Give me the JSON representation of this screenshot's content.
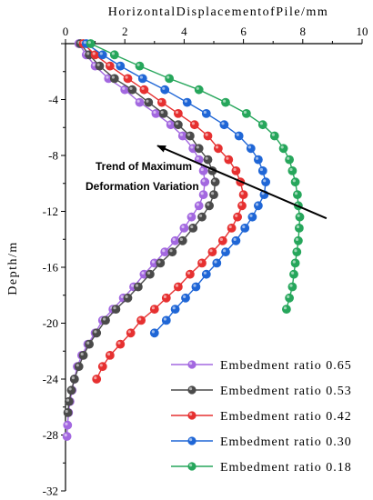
{
  "chart_data": {
    "type": "line",
    "xlabel": "HorizontalDisplacementofPile/mm",
    "ylabel": "Depth/m",
    "xlim": [
      0,
      10
    ],
    "ylim": [
      -32,
      0
    ],
    "x_ticks": [
      "0",
      "2",
      "4",
      "6",
      "8",
      "10"
    ],
    "y_ticks": [
      "-4",
      "-8",
      "-12",
      "-16",
      "-20",
      "-24",
      "-28",
      "-32"
    ],
    "x_axis_position": "top",
    "grid": false,
    "legend_position": "bottom-right",
    "annotation": {
      "lines": [
        "Trend of Maximum",
        "Deformation Variation"
      ],
      "arrow_from": [
        8.8,
        -12.5
      ],
      "arrow_to": [
        3.1,
        -7.3
      ]
    },
    "series": [
      {
        "name": "Embedment ratio 0.65",
        "color": "#a368e0",
        "points": [
          [
            0.45,
            0
          ],
          [
            0.7,
            -0.8
          ],
          [
            1.0,
            -1.6
          ],
          [
            1.45,
            -2.5
          ],
          [
            2.0,
            -3.3
          ],
          [
            2.5,
            -4.2
          ],
          [
            3.05,
            -5.0
          ],
          [
            3.55,
            -5.8
          ],
          [
            3.95,
            -6.6
          ],
          [
            4.3,
            -7.5
          ],
          [
            4.5,
            -8.3
          ],
          [
            4.65,
            -9.1
          ],
          [
            4.7,
            -9.9
          ],
          [
            4.65,
            -10.8
          ],
          [
            4.5,
            -11.6
          ],
          [
            4.25,
            -12.4
          ],
          [
            4.0,
            -13.2
          ],
          [
            3.7,
            -14.1
          ],
          [
            3.35,
            -14.9
          ],
          [
            3.0,
            -15.7
          ],
          [
            2.65,
            -16.5
          ],
          [
            2.3,
            -17.4
          ],
          [
            1.95,
            -18.2
          ],
          [
            1.6,
            -19.0
          ],
          [
            1.25,
            -19.8
          ],
          [
            1.0,
            -20.7
          ],
          [
            0.75,
            -21.5
          ],
          [
            0.55,
            -22.3
          ],
          [
            0.4,
            -23.1
          ],
          [
            0.3,
            -24.0
          ],
          [
            0.22,
            -24.8
          ],
          [
            0.15,
            -25.6
          ],
          [
            0.1,
            -26.4
          ],
          [
            0.07,
            -27.3
          ],
          [
            0.05,
            -28.1
          ]
        ]
      },
      {
        "name": "Embedment ratio 0.53",
        "color": "#4a4a4a",
        "points": [
          [
            0.5,
            0
          ],
          [
            0.8,
            -0.8
          ],
          [
            1.15,
            -1.6
          ],
          [
            1.65,
            -2.5
          ],
          [
            2.25,
            -3.3
          ],
          [
            2.8,
            -4.2
          ],
          [
            3.3,
            -5.0
          ],
          [
            3.8,
            -5.8
          ],
          [
            4.2,
            -6.6
          ],
          [
            4.5,
            -7.5
          ],
          [
            4.8,
            -8.3
          ],
          [
            4.95,
            -9.1
          ],
          [
            5.05,
            -9.9
          ],
          [
            5.0,
            -10.8
          ],
          [
            4.85,
            -11.6
          ],
          [
            4.6,
            -12.4
          ],
          [
            4.3,
            -13.2
          ],
          [
            3.95,
            -14.1
          ],
          [
            3.6,
            -14.9
          ],
          [
            3.2,
            -15.7
          ],
          [
            2.85,
            -16.5
          ],
          [
            2.45,
            -17.4
          ],
          [
            2.1,
            -18.2
          ],
          [
            1.7,
            -19.0
          ],
          [
            1.35,
            -19.8
          ],
          [
            1.05,
            -20.7
          ],
          [
            0.8,
            -21.5
          ],
          [
            0.6,
            -22.3
          ],
          [
            0.45,
            -23.1
          ],
          [
            0.3,
            -24.0
          ],
          [
            0.2,
            -24.8
          ],
          [
            0.12,
            -25.6
          ],
          [
            0.08,
            -26.4
          ]
        ]
      },
      {
        "name": "Embedment ratio 0.42",
        "color": "#e63030",
        "points": [
          [
            0.6,
            0
          ],
          [
            1.0,
            -0.8
          ],
          [
            1.5,
            -1.6
          ],
          [
            2.1,
            -2.5
          ],
          [
            2.65,
            -3.3
          ],
          [
            3.25,
            -4.2
          ],
          [
            3.8,
            -5.0
          ],
          [
            4.35,
            -5.8
          ],
          [
            4.8,
            -6.6
          ],
          [
            5.15,
            -7.5
          ],
          [
            5.5,
            -8.3
          ],
          [
            5.75,
            -9.1
          ],
          [
            5.9,
            -9.9
          ],
          [
            6.0,
            -10.8
          ],
          [
            5.95,
            -11.6
          ],
          [
            5.8,
            -12.4
          ],
          [
            5.6,
            -13.2
          ],
          [
            5.3,
            -14.1
          ],
          [
            4.95,
            -14.9
          ],
          [
            4.6,
            -15.7
          ],
          [
            4.2,
            -16.5
          ],
          [
            3.8,
            -17.4
          ],
          [
            3.4,
            -18.2
          ],
          [
            3.0,
            -19.0
          ],
          [
            2.55,
            -19.8
          ],
          [
            2.2,
            -20.7
          ],
          [
            1.85,
            -21.5
          ],
          [
            1.5,
            -22.3
          ],
          [
            1.25,
            -23.1
          ],
          [
            1.05,
            -24.0
          ]
        ]
      },
      {
        "name": "Embedment ratio 0.30",
        "color": "#1f66d6",
        "points": [
          [
            0.7,
            0
          ],
          [
            1.25,
            -0.8
          ],
          [
            1.85,
            -1.6
          ],
          [
            2.6,
            -2.5
          ],
          [
            3.35,
            -3.3
          ],
          [
            4.1,
            -4.2
          ],
          [
            4.75,
            -5.0
          ],
          [
            5.35,
            -5.8
          ],
          [
            5.85,
            -6.6
          ],
          [
            6.25,
            -7.5
          ],
          [
            6.5,
            -8.3
          ],
          [
            6.65,
            -9.1
          ],
          [
            6.75,
            -9.9
          ],
          [
            6.7,
            -10.8
          ],
          [
            6.5,
            -11.6
          ],
          [
            6.3,
            -12.4
          ],
          [
            6.05,
            -13.2
          ],
          [
            5.75,
            -14.1
          ],
          [
            5.4,
            -14.9
          ],
          [
            5.1,
            -15.7
          ],
          [
            4.75,
            -16.5
          ],
          [
            4.4,
            -17.4
          ],
          [
            4.05,
            -18.2
          ],
          [
            3.7,
            -19.0
          ],
          [
            3.4,
            -19.8
          ],
          [
            3.0,
            -20.7
          ]
        ]
      },
      {
        "name": "Embedment ratio 0.18",
        "color": "#26a65b",
        "points": [
          [
            0.85,
            0
          ],
          [
            1.65,
            -0.8
          ],
          [
            2.5,
            -1.6
          ],
          [
            3.5,
            -2.5
          ],
          [
            4.5,
            -3.3
          ],
          [
            5.4,
            -4.2
          ],
          [
            6.1,
            -5.0
          ],
          [
            6.65,
            -5.8
          ],
          [
            7.05,
            -6.6
          ],
          [
            7.35,
            -7.5
          ],
          [
            7.55,
            -8.3
          ],
          [
            7.65,
            -9.1
          ],
          [
            7.75,
            -9.9
          ],
          [
            7.82,
            -10.8
          ],
          [
            7.85,
            -11.6
          ],
          [
            7.9,
            -12.4
          ],
          [
            7.88,
            -13.2
          ],
          [
            7.85,
            -14.1
          ],
          [
            7.8,
            -14.9
          ],
          [
            7.75,
            -15.7
          ],
          [
            7.7,
            -16.5
          ],
          [
            7.65,
            -17.4
          ],
          [
            7.55,
            -18.2
          ],
          [
            7.45,
            -19.0
          ]
        ]
      }
    ]
  }
}
